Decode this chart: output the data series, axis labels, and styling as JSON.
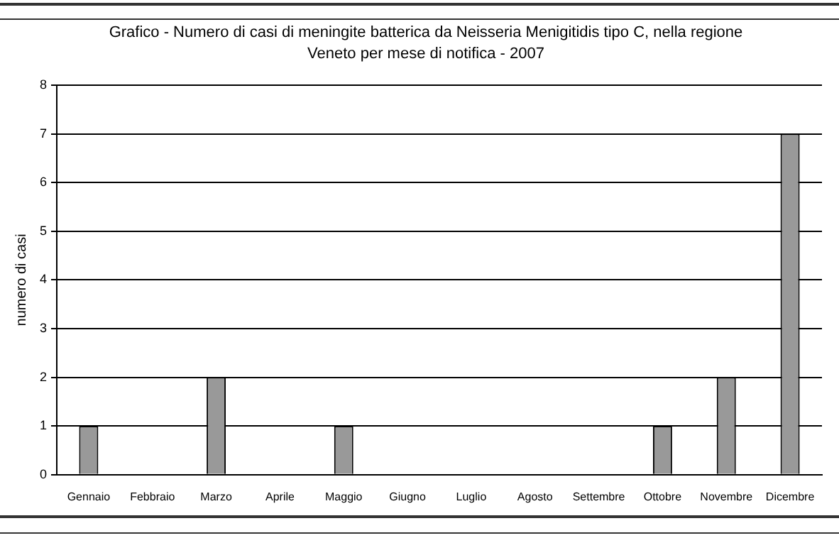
{
  "chart_data": {
    "type": "bar",
    "title": "Grafico  -  Numero di casi di meningite batterica da Neisseria Menigitidis tipo C, nella regione Veneto per mese di notifica - 2007",
    "ylabel": "numero di casi",
    "categories": [
      "Gennaio",
      "Febbraio",
      "Marzo",
      "Aprile",
      "Maggio",
      "Giugno",
      "Luglio",
      "Agosto",
      "Settembre",
      "Ottobre",
      "Novembre",
      "Dicembre"
    ],
    "values": [
      1,
      0,
      2,
      0,
      1,
      0,
      0,
      0,
      0,
      1,
      2,
      7
    ],
    "color": "#999999",
    "ylim": [
      0,
      8
    ],
    "yticks": [
      0,
      1,
      2,
      3,
      4,
      5,
      6,
      7,
      8
    ],
    "grid": "y",
    "legend": false
  }
}
